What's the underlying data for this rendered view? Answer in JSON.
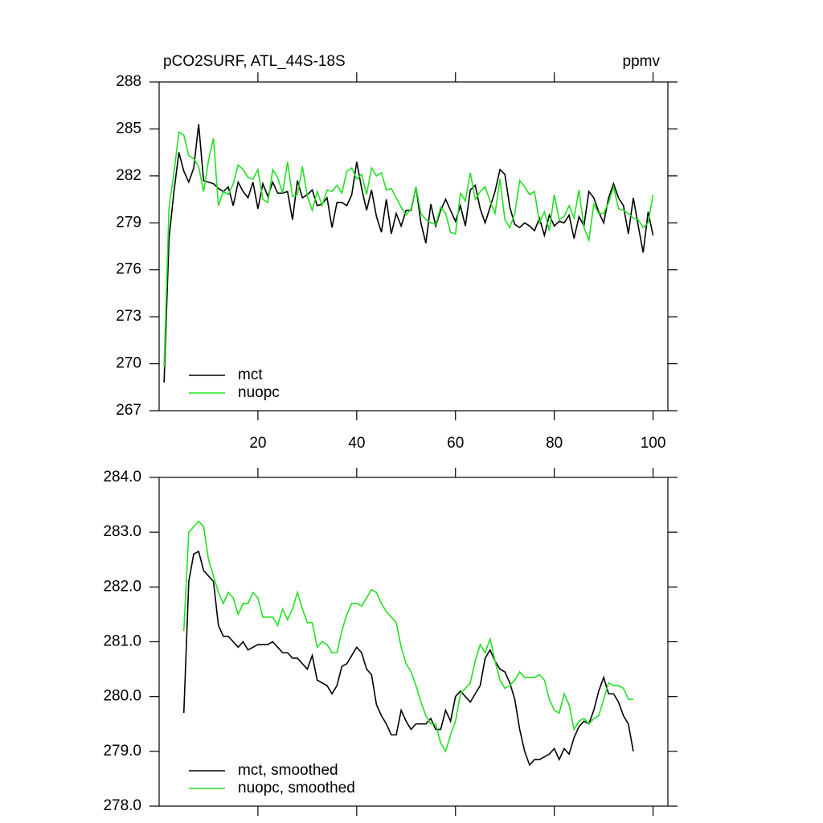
{
  "chart_data": [
    {
      "type": "line",
      "title": "pCO2SURF, ATL_44S-18S",
      "units_label": "ppmv",
      "x": [
        1,
        2,
        3,
        4,
        5,
        6,
        7,
        8,
        9,
        10,
        11,
        12,
        13,
        14,
        15,
        16,
        17,
        18,
        19,
        20,
        21,
        22,
        23,
        24,
        25,
        26,
        27,
        28,
        29,
        30,
        31,
        32,
        33,
        34,
        35,
        36,
        37,
        38,
        39,
        40,
        41,
        42,
        43,
        44,
        45,
        46,
        47,
        48,
        49,
        50,
        51,
        52,
        53,
        54,
        55,
        56,
        57,
        58,
        59,
        60,
        61,
        62,
        63,
        64,
        65,
        66,
        67,
        68,
        69,
        70,
        71,
        72,
        73,
        74,
        75,
        76,
        77,
        78,
        79,
        80,
        81,
        82,
        83,
        84,
        85,
        86,
        87,
        88,
        89,
        90,
        91,
        92,
        93,
        94,
        95,
        96,
        97,
        98,
        99,
        100
      ],
      "series": [
        {
          "name": "mct",
          "color": "#000000",
          "values": [
            268.8,
            278.0,
            281.0,
            283.5,
            282.3,
            281.6,
            282.5,
            285.3,
            281.7,
            281.6,
            281.5,
            281.2,
            281.0,
            281.3,
            280.1,
            281.6,
            281.0,
            280.6,
            281.6,
            279.9,
            281.5,
            280.7,
            281.6,
            280.9,
            280.9,
            281.0,
            279.2,
            281.7,
            280.6,
            280.8,
            281.1,
            280.1,
            280.2,
            280.6,
            278.7,
            280.3,
            280.3,
            280.1,
            280.8,
            282.9,
            281.2,
            279.8,
            281.1,
            279.4,
            278.4,
            280.5,
            278.3,
            279.6,
            278.8,
            279.8,
            279.8,
            281.3,
            279.0,
            277.7,
            280.2,
            278.8,
            279.8,
            280.5,
            279.8,
            279.1,
            280.1,
            278.8,
            281.1,
            281.4,
            279.9,
            279.0,
            280.0,
            281.0,
            282.4,
            282.1,
            280.0,
            278.9,
            278.7,
            279.0,
            278.8,
            278.5,
            279.3,
            278.2,
            279.5,
            278.8,
            279.1,
            279.0,
            279.5,
            278.0,
            279.4,
            278.8,
            281.0,
            280.6,
            279.7,
            279.0,
            280.6,
            281.5,
            280.6,
            280.1,
            278.3,
            280.6,
            278.8,
            277.1,
            279.7,
            278.2
          ]
        },
        {
          "name": "nuopc",
          "color": "#22e022",
          "values": [
            269.8,
            280.0,
            282.2,
            284.8,
            284.6,
            283.3,
            283.1,
            282.6,
            281.0,
            283.0,
            284.4,
            280.1,
            281.0,
            280.8,
            281.5,
            282.7,
            282.4,
            281.9,
            281.8,
            282.4,
            280.5,
            280.3,
            282.4,
            281.9,
            280.9,
            282.9,
            280.7,
            280.8,
            282.6,
            280.7,
            279.8,
            281.0,
            280.1,
            281.1,
            281.0,
            281.4,
            280.9,
            282.3,
            282.5,
            281.8,
            282.1,
            280.8,
            282.5,
            282.0,
            282.2,
            281.1,
            281.2,
            280.6,
            280.0,
            279.5,
            279.9,
            281.3,
            279.6,
            279.2,
            279.0,
            278.9,
            280.0,
            279.6,
            278.4,
            278.3,
            280.9,
            280.4,
            282.2,
            280.5,
            281.0,
            281.3,
            280.4,
            279.6,
            281.8,
            279.2,
            278.7,
            279.6,
            281.7,
            281.3,
            280.8,
            281.0,
            279.0,
            279.7,
            278.5,
            280.8,
            279.2,
            279.4,
            280.1,
            279.3,
            281.1,
            278.7,
            277.9,
            280.2,
            279.6,
            279.6,
            280.3,
            281.3,
            279.9,
            279.8,
            279.6,
            279.3,
            279.2,
            278.7,
            279.0,
            280.8
          ]
        }
      ],
      "xlim": [
        0,
        103
      ],
      "xticks": [
        20,
        40,
        60,
        80,
        100
      ],
      "ylim": [
        267,
        288
      ],
      "yticks": [
        267,
        270,
        273,
        276,
        279,
        282,
        285,
        288
      ],
      "legend": "lower left"
    },
    {
      "type": "line",
      "x": [
        5,
        6,
        7,
        8,
        9,
        10,
        11,
        12,
        13,
        14,
        15,
        16,
        17,
        18,
        19,
        20,
        21,
        22,
        23,
        24,
        25,
        26,
        27,
        28,
        29,
        30,
        31,
        32,
        33,
        34,
        35,
        36,
        37,
        38,
        39,
        40,
        41,
        42,
        43,
        44,
        45,
        46,
        47,
        48,
        49,
        50,
        51,
        52,
        53,
        54,
        55,
        56,
        57,
        58,
        59,
        60,
        61,
        62,
        63,
        64,
        65,
        66,
        67,
        68,
        69,
        70,
        71,
        72,
        73,
        74,
        75,
        76,
        77,
        78,
        79,
        80,
        81,
        82,
        83,
        84,
        85,
        86,
        87,
        88,
        89,
        90,
        91,
        92,
        93,
        94,
        95,
        96
      ],
      "series": [
        {
          "name": "mct, smoothed",
          "color": "#000000",
          "values": [
            279.7,
            282.1,
            282.6,
            282.65,
            282.3,
            282.2,
            282.1,
            281.3,
            281.1,
            281.1,
            281.0,
            280.9,
            281.0,
            280.85,
            280.9,
            280.95,
            280.95,
            280.95,
            281.0,
            280.9,
            280.8,
            280.8,
            280.7,
            280.7,
            280.6,
            280.5,
            280.75,
            280.3,
            280.25,
            280.2,
            280.05,
            280.2,
            280.55,
            280.6,
            280.75,
            280.9,
            280.8,
            280.5,
            280.4,
            279.85,
            279.65,
            279.5,
            279.3,
            279.3,
            279.75,
            279.55,
            279.4,
            279.5,
            279.5,
            279.5,
            279.6,
            279.4,
            279.4,
            279.75,
            279.55,
            280.0,
            280.1,
            280.0,
            279.9,
            280.05,
            280.2,
            280.7,
            280.85,
            280.65,
            280.5,
            280.45,
            280.25,
            279.95,
            279.4,
            279.0,
            278.75,
            278.85,
            278.85,
            278.9,
            278.95,
            279.05,
            278.85,
            279.05,
            278.95,
            279.25,
            279.45,
            279.55,
            279.5,
            279.75,
            280.1,
            280.35,
            280.05,
            280.05,
            279.9,
            279.65,
            279.5,
            279.0
          ]
        },
        {
          "name": "nuopc, smoothed",
          "color": "#22e022",
          "values": [
            281.2,
            283.0,
            283.1,
            283.2,
            283.1,
            282.5,
            282.2,
            281.9,
            281.7,
            281.9,
            281.8,
            281.5,
            281.7,
            281.7,
            281.9,
            281.8,
            281.45,
            281.45,
            281.45,
            281.3,
            281.6,
            281.4,
            281.6,
            281.9,
            281.6,
            281.35,
            281.35,
            280.9,
            281.0,
            280.95,
            280.8,
            280.8,
            281.2,
            281.5,
            281.7,
            281.7,
            281.65,
            281.8,
            281.95,
            281.9,
            281.7,
            281.55,
            281.45,
            281.35,
            280.9,
            280.6,
            280.45,
            280.2,
            279.9,
            279.65,
            279.5,
            279.5,
            279.15,
            279.0,
            279.3,
            279.55,
            280.05,
            280.15,
            280.25,
            280.65,
            280.95,
            280.8,
            281.05,
            280.65,
            280.3,
            280.15,
            280.2,
            280.3,
            280.45,
            280.35,
            280.35,
            280.35,
            280.4,
            280.3,
            279.95,
            279.75,
            279.7,
            280.05,
            279.85,
            279.4,
            279.55,
            279.6,
            279.5,
            279.6,
            279.65,
            279.95,
            280.25,
            280.2,
            280.2,
            280.15,
            279.95,
            279.95
          ]
        }
      ],
      "xlim": [
        0,
        103
      ],
      "xticks": [
        20,
        40,
        60,
        80,
        100
      ],
      "ylim": [
        278,
        284
      ],
      "yticks": [
        {
          "value": 278,
          "label": "278.0"
        },
        {
          "value": 279,
          "label": "279.0"
        },
        {
          "value": 280,
          "label": "280.0"
        },
        {
          "value": 281,
          "label": "281.0"
        },
        {
          "value": 282,
          "label": "282.0"
        },
        {
          "value": 283,
          "label": "283.0"
        },
        {
          "value": 284,
          "label": "284.0"
        }
      ],
      "legend": "lower left"
    }
  ]
}
